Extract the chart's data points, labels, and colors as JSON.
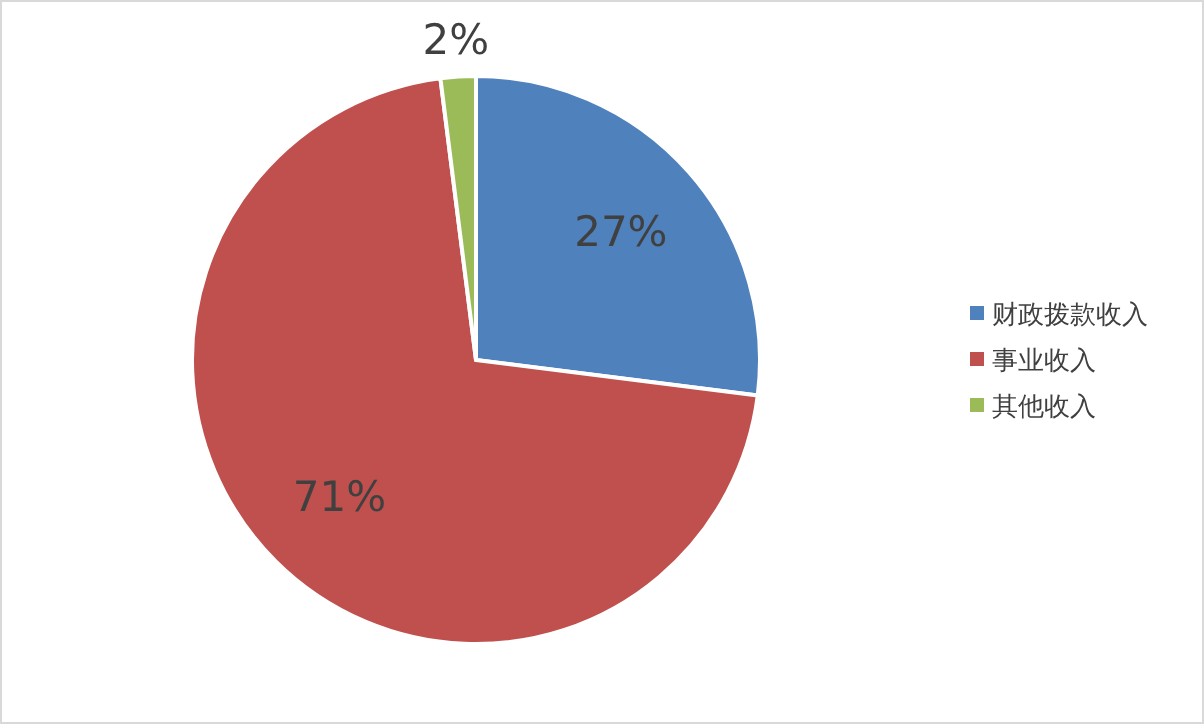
{
  "chart_data": {
    "type": "pie",
    "categories": [
      "财政拨款收入",
      "事业收入",
      "其他收入"
    ],
    "values": [
      27,
      71,
      2
    ],
    "colors": [
      "#4f81bd",
      "#c0504d",
      "#9bbb59"
    ],
    "value_labels": [
      "27%",
      "71%",
      "2%"
    ],
    "legend": "right"
  }
}
